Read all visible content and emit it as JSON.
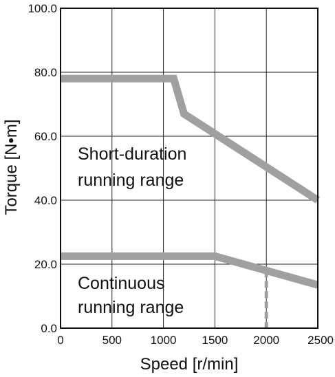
{
  "chart_data": {
    "type": "line",
    "xlabel": "Speed [r/min]",
    "ylabel": "Torque [N•m]",
    "xlim": [
      0,
      2500
    ],
    "ylim": [
      0,
      100
    ],
    "x_ticks": [
      0,
      500,
      1000,
      1500,
      2000,
      2500
    ],
    "x_tick_labels": [
      "0",
      "500",
      "1000",
      "1500",
      "2000",
      "2500"
    ],
    "y_ticks": [
      0,
      20,
      40,
      60,
      80,
      100
    ],
    "y_tick_labels": [
      "0.0",
      "20.0",
      "40.0",
      "60.0",
      "80.0",
      "100.0"
    ],
    "grid": true,
    "series": [
      {
        "points": [
          [
            0,
            78
          ],
          [
            1100,
            78
          ],
          [
            1200,
            67
          ],
          [
            2500,
            40
          ]
        ],
        "color": "#a0a0a0",
        "style": "solid"
      },
      {
        "points": [
          [
            0,
            22.5
          ],
          [
            1500,
            22.5
          ],
          [
            2000,
            18
          ],
          [
            2500,
            13.5
          ]
        ],
        "color": "#a0a0a0",
        "style": "solid"
      },
      {
        "points": [
          [
            2000,
            18
          ],
          [
            2000,
            0
          ]
        ],
        "color": "#a0a0a0",
        "style": "dashed"
      }
    ],
    "annotations": [
      {
        "lines": [
          "Short-duration",
          "running range"
        ]
      },
      {
        "lines": [
          "Continuous",
          "running range"
        ]
      }
    ]
  }
}
